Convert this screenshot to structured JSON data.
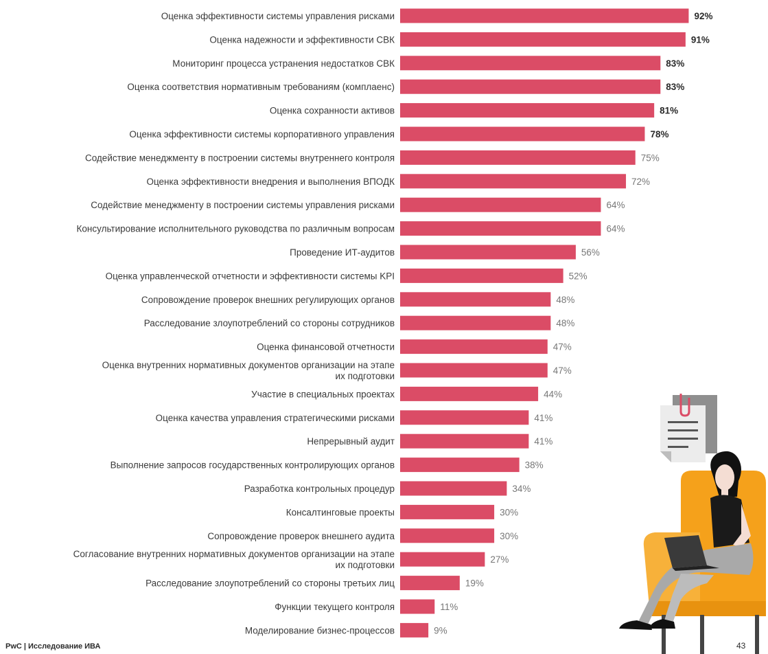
{
  "chart_data": {
    "type": "bar",
    "orientation": "horizontal",
    "categories": [
      [
        "Оценка эффективности системы управления рисками"
      ],
      [
        "Оценка надежности и эффективности СВК"
      ],
      [
        "Мониторинг процесса устранения недостатков СВК"
      ],
      [
        "Оценка соответствия нормативным требованиям (комплаенс)"
      ],
      [
        "Оценка сохранности активов"
      ],
      [
        "Оценка эффективности системы корпоративного управления"
      ],
      [
        "Содействие менеджменту в построении системы внутреннего контроля"
      ],
      [
        "Оценка эффективности внедрения и выполнения ВПОДК"
      ],
      [
        "Содействие менеджменту в построении системы управления рисками"
      ],
      [
        "Консультирование исполнительного руководства по различным вопросам"
      ],
      [
        "Проведение ИТ-аудитов"
      ],
      [
        "Оценка управленческой отчетности и эффективности системы KPI"
      ],
      [
        "Сопровождение проверок внешних регулирующих органов"
      ],
      [
        "Расследование злоупотреблений со стороны сотрудников"
      ],
      [
        "Оценка финансовой отчетности"
      ],
      [
        "Оценка внутренних нормативных документов организации на этапе",
        "их подготовки"
      ],
      [
        "Участие в специальных проектах"
      ],
      [
        "Оценка качества управления стратегическими рисками"
      ],
      [
        "Непрерывный аудит"
      ],
      [
        "Выполнение запросов государственных контролирующих органов"
      ],
      [
        "Разработка контрольных процедур"
      ],
      [
        "Консалтинговые проекты"
      ],
      [
        "Сопровождение проверок внешнего аудита"
      ],
      [
        "Согласование внутренних нормативных документов организации на этапе",
        "их подготовки"
      ],
      [
        "Расследование злоупотреблений со стороны третьих лиц"
      ],
      [
        "Функции текущего контроля"
      ],
      [
        "Моделирование бизнес-процессов"
      ]
    ],
    "values": [
      92,
      91,
      83,
      83,
      81,
      78,
      75,
      72,
      64,
      64,
      56,
      52,
      48,
      48,
      47,
      47,
      44,
      41,
      41,
      38,
      34,
      30,
      30,
      27,
      19,
      11,
      9
    ],
    "value_labels": [
      "92%",
      "91%",
      "83%",
      "83%",
      "81%",
      "78%",
      "75%",
      "72%",
      "64%",
      "64%",
      "56%",
      "52%",
      "48%",
      "48%",
      "47%",
      "47%",
      "44%",
      "41%",
      "41%",
      "38%",
      "34%",
      "30%",
      "30%",
      "27%",
      "19%",
      "11%",
      "9%"
    ],
    "xlim": [
      0,
      100
    ],
    "bar_color": "#db4c66",
    "label_colors": {
      "high": "#2b2b2b",
      "low": "#777777"
    },
    "bold_threshold": 78,
    "grid": false,
    "title": "",
    "xlabel": "",
    "ylabel": ""
  },
  "footer": {
    "source": "PwC | Исследование ИВА",
    "page_number": "43"
  },
  "illustration": {
    "icons": [
      "clipboard-icon",
      "person-with-laptop-in-armchair"
    ],
    "colors": {
      "chair": "#f5a11b",
      "document": "#ececec",
      "paper_back": "#8f8f8f",
      "clip": "#db4c66",
      "hair": "#111111"
    }
  }
}
